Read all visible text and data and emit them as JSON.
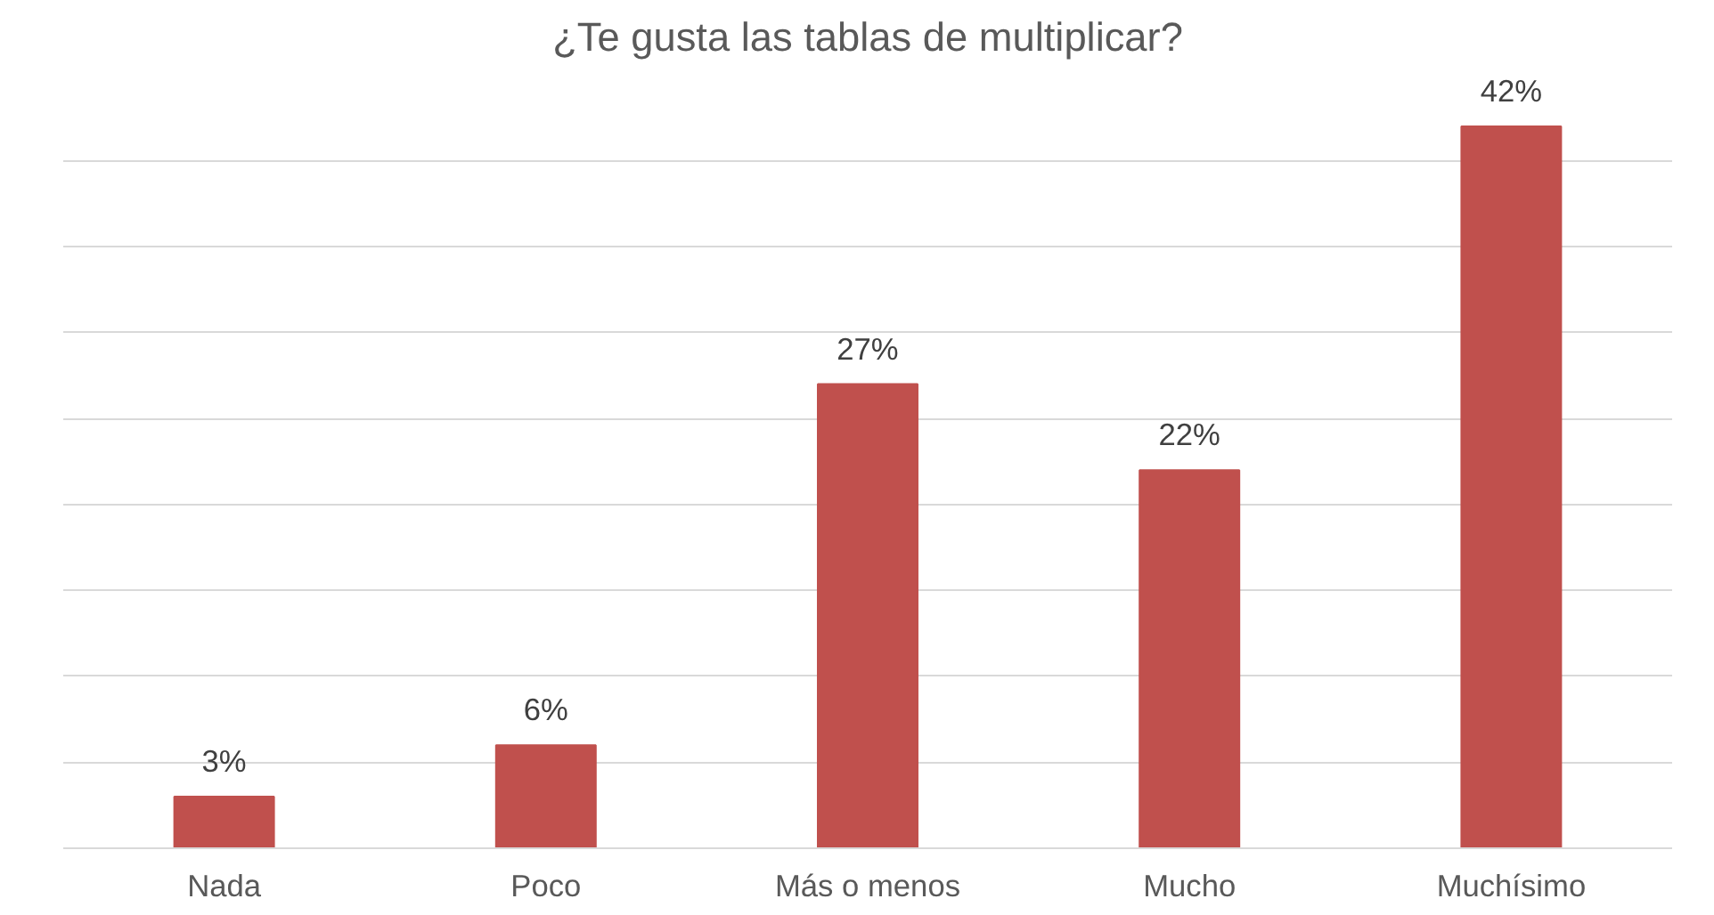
{
  "chart_data": {
    "type": "bar",
    "title": "¿Te gusta las tablas de multiplicar?",
    "categories": [
      "Nada",
      "Poco",
      "Más o menos",
      "Mucho",
      "Muchísimo"
    ],
    "values": [
      3,
      6,
      27,
      22,
      42
    ],
    "color": "#c0504d",
    "value_labels": [
      "3%",
      "6%",
      "27%",
      "22%",
      "42%"
    ],
    "yticks": [
      {
        "value": 0,
        "label": null
      },
      {
        "value": 5,
        "label": null
      },
      {
        "value": 10,
        "label": null
      },
      {
        "value": 15,
        "label": null
      },
      {
        "value": 20,
        "label": null
      },
      {
        "value": 25,
        "label": null
      },
      {
        "value": 30,
        "label": null
      },
      {
        "value": 35,
        "label": null
      },
      {
        "value": 40,
        "label": null
      }
    ],
    "grid": "y",
    "tick_labels": "x"
  }
}
